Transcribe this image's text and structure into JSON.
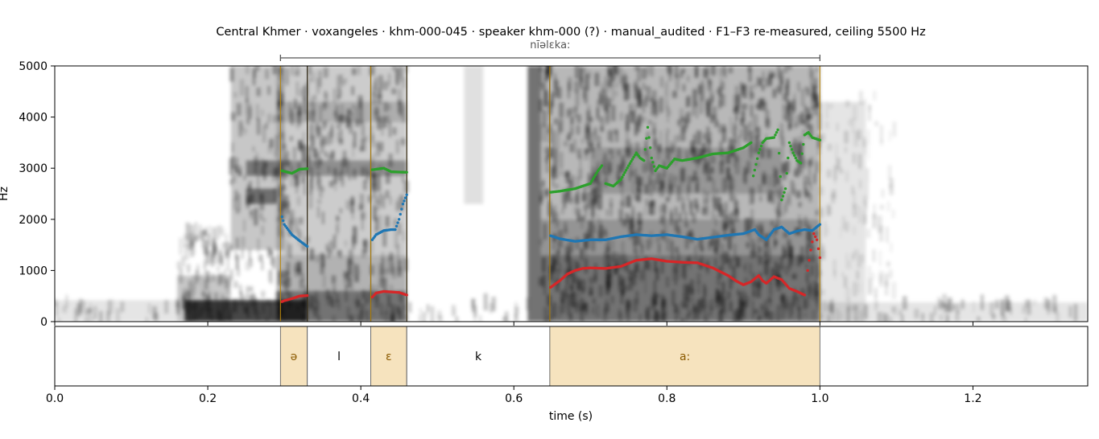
{
  "chart_data": {
    "type": "spectrogram",
    "title": "Central Khmer · voxangeles · khm-000-045 · speaker khm-000 (?) · manual_audited · F1–F3 re-measured, ceiling 5500 Hz",
    "ylabel": "Hz",
    "xlabel": "time (s)",
    "xlim": [
      0.0,
      1.35
    ],
    "ylim": [
      0,
      5000
    ],
    "x_ticks": [
      "0.0",
      "0.2",
      "0.4",
      "0.6",
      "0.8",
      "1.0",
      "1.2"
    ],
    "y_ticks": [
      "0",
      "1000",
      "2000",
      "3000",
      "4000",
      "5000"
    ],
    "grid": false,
    "word": {
      "text": "nīəlɛka:",
      "start": 0.295,
      "end": 1.0
    },
    "segments": [
      {
        "label": "ə",
        "start": 0.295,
        "end": 0.33,
        "vowel": true
      },
      {
        "label": "l",
        "start": 0.33,
        "end": 0.413,
        "vowel": false
      },
      {
        "label": "ɛ",
        "start": 0.413,
        "end": 0.46,
        "vowel": true
      },
      {
        "label": "k",
        "start": 0.46,
        "end": 0.647,
        "vowel": false
      },
      {
        "label": "a:",
        "start": 0.647,
        "end": 1.0,
        "vowel": true
      }
    ],
    "series": [
      {
        "name": "F1",
        "color": "#d62728",
        "segments": [
          [
            [
              0.297,
              390
            ],
            [
              0.3,
              410
            ],
            [
              0.31,
              450
            ],
            [
              0.32,
              500
            ],
            [
              0.33,
              510
            ]
          ],
          [
            [
              0.415,
              480
            ],
            [
              0.42,
              560
            ],
            [
              0.43,
              590
            ],
            [
              0.44,
              580
            ],
            [
              0.45,
              570
            ],
            [
              0.46,
              520
            ]
          ],
          [
            [
              0.648,
              670
            ],
            [
              0.66,
              800
            ],
            [
              0.67,
              930
            ],
            [
              0.68,
              1000
            ],
            [
              0.69,
              1040
            ],
            [
              0.7,
              1050
            ],
            [
              0.72,
              1040
            ],
            [
              0.74,
              1080
            ],
            [
              0.76,
              1200
            ],
            [
              0.78,
              1230
            ],
            [
              0.8,
              1180
            ],
            [
              0.82,
              1160
            ],
            [
              0.84,
              1150
            ],
            [
              0.86,
              1050
            ],
            [
              0.88,
              900
            ],
            [
              0.89,
              800
            ],
            [
              0.9,
              720
            ],
            [
              0.91,
              780
            ],
            [
              0.92,
              900
            ],
            [
              0.925,
              800
            ],
            [
              0.93,
              750
            ],
            [
              0.94,
              880
            ],
            [
              0.95,
              820
            ],
            [
              0.96,
              650
            ],
            [
              0.97,
              590
            ],
            [
              0.98,
              520
            ]
          ],
          [
            [
              0.984,
              1000
            ],
            [
              0.988,
              1400
            ],
            [
              0.992,
              1720
            ],
            [
              0.996,
              1600
            ],
            [
              1.0,
              1250
            ]
          ]
        ]
      },
      {
        "name": "F2",
        "color": "#1f77b4",
        "segments": [
          [
            [
              0.297,
              2050
            ],
            [
              0.3,
              1900
            ],
            [
              0.31,
              1700
            ],
            [
              0.32,
              1580
            ],
            [
              0.33,
              1470
            ]
          ],
          [
            [
              0.415,
              1600
            ],
            [
              0.42,
              1700
            ],
            [
              0.43,
              1780
            ],
            [
              0.44,
              1800
            ],
            [
              0.445,
              1800
            ],
            [
              0.45,
              2000
            ],
            [
              0.455,
              2300
            ],
            [
              0.46,
              2480
            ]
          ],
          [
            [
              0.648,
              1680
            ],
            [
              0.66,
              1620
            ],
            [
              0.68,
              1570
            ],
            [
              0.7,
              1600
            ],
            [
              0.72,
              1600
            ],
            [
              0.74,
              1660
            ],
            [
              0.76,
              1700
            ],
            [
              0.78,
              1680
            ],
            [
              0.8,
              1700
            ],
            [
              0.82,
              1660
            ],
            [
              0.84,
              1610
            ],
            [
              0.86,
              1650
            ],
            [
              0.88,
              1690
            ],
            [
              0.9,
              1720
            ],
            [
              0.915,
              1800
            ],
            [
              0.92,
              1700
            ],
            [
              0.93,
              1600
            ],
            [
              0.94,
              1800
            ],
            [
              0.95,
              1850
            ],
            [
              0.96,
              1720
            ],
            [
              0.97,
              1770
            ],
            [
              0.98,
              1800
            ],
            [
              0.99,
              1780
            ],
            [
              1.0,
              1900
            ]
          ]
        ]
      },
      {
        "name": "F3",
        "color": "#2ca02c",
        "segments": [
          [
            [
              0.297,
              2950
            ],
            [
              0.31,
              2900
            ],
            [
              0.32,
              2980
            ],
            [
              0.33,
              2990
            ]
          ],
          [
            [
              0.415,
              2970
            ],
            [
              0.43,
              3000
            ],
            [
              0.44,
              2930
            ],
            [
              0.46,
              2920
            ]
          ],
          [
            [
              0.648,
              2530
            ],
            [
              0.66,
              2550
            ],
            [
              0.68,
              2600
            ],
            [
              0.7,
              2700
            ],
            [
              0.71,
              2950
            ],
            [
              0.715,
              3050
            ]
          ],
          [
            [
              0.72,
              2700
            ],
            [
              0.73,
              2650
            ],
            [
              0.74,
              2780
            ],
            [
              0.75,
              3050
            ],
            [
              0.76,
              3300
            ],
            [
              0.765,
              3200
            ],
            [
              0.77,
              3150
            ],
            [
              0.775,
              3800
            ],
            [
              0.78,
              3200
            ],
            [
              0.785,
              2950
            ],
            [
              0.79,
              3050
            ],
            [
              0.8,
              3000
            ],
            [
              0.81,
              3180
            ],
            [
              0.82,
              3150
            ],
            [
              0.84,
              3200
            ],
            [
              0.86,
              3280
            ],
            [
              0.88,
              3300
            ],
            [
              0.9,
              3400
            ],
            [
              0.91,
              3500
            ]
          ],
          [
            [
              0.913,
              2850
            ],
            [
              0.92,
              3300
            ],
            [
              0.925,
              3500
            ],
            [
              0.93,
              3580
            ],
            [
              0.94,
              3600
            ],
            [
              0.945,
              3750
            ],
            [
              0.95,
              2380
            ],
            [
              0.955,
              2600
            ],
            [
              0.96,
              3500
            ],
            [
              0.965,
              3300
            ],
            [
              0.97,
              3150
            ],
            [
              0.975,
              3100
            ],
            [
              0.98,
              3650
            ],
            [
              0.985,
              3700
            ],
            [
              0.99,
              3600
            ],
            [
              1.0,
              3550
            ]
          ]
        ]
      }
    ]
  }
}
